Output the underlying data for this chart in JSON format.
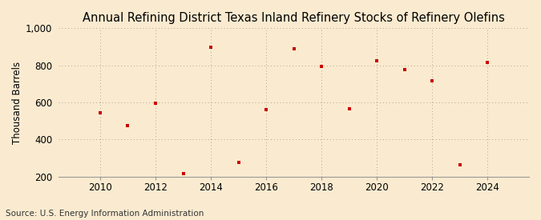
{
  "title": "Annual Refining District Texas Inland Refinery Stocks of Refinery Olefins",
  "ylabel": "Thousand Barrels",
  "source": "Source: U.S. Energy Information Administration",
  "background_color": "#faebd0",
  "plot_bg_color": "#faebd0",
  "marker_color": "#cc0000",
  "years": [
    2010,
    2011,
    2012,
    2013,
    2014,
    2015,
    2016,
    2017,
    2018,
    2019,
    2020,
    2021,
    2022,
    2023,
    2024
  ],
  "values": [
    545,
    475,
    595,
    215,
    900,
    275,
    560,
    890,
    795,
    565,
    825,
    775,
    715,
    265,
    815
  ],
  "ylim": [
    200,
    1000
  ],
  "yticks": [
    200,
    400,
    600,
    800,
    1000
  ],
  "ytick_labels": [
    "200",
    "400",
    "600",
    "800",
    "1,000"
  ],
  "xticks": [
    2010,
    2012,
    2014,
    2016,
    2018,
    2020,
    2022,
    2024
  ],
  "xlim": [
    2008.5,
    2025.5
  ],
  "title_fontsize": 10.5,
  "axis_fontsize": 8.5,
  "source_fontsize": 7.5,
  "ylabel_fontsize": 8.5
}
